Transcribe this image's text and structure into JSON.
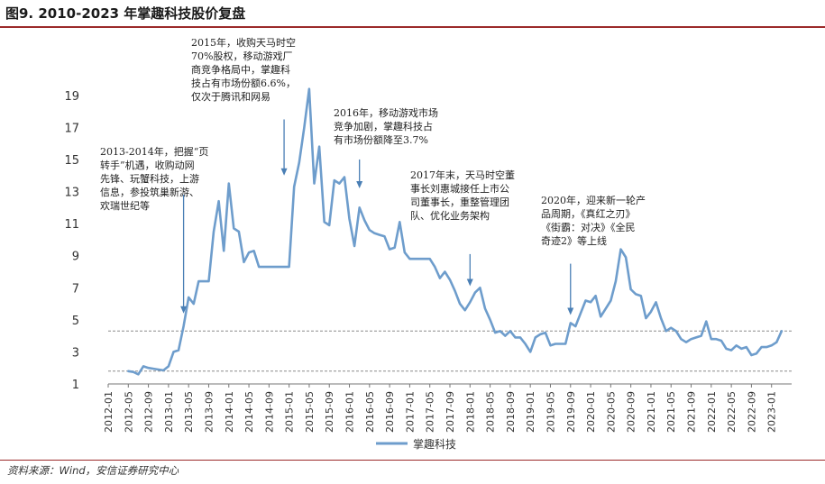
{
  "header": {
    "title": "图9. 2010-2023 年掌趣科技股价复盘"
  },
  "footer": {
    "source": "资料来源：Wind，安信证券研究中心"
  },
  "chart_data": {
    "type": "line",
    "title": "图9. 2010-2023 年掌趣科技股价复盘",
    "xlabel": "",
    "ylabel": "",
    "ylim": [
      1,
      20
    ],
    "yticks": [
      1,
      3,
      5,
      7,
      9,
      11,
      13,
      15,
      17,
      19
    ],
    "xlim": [
      "2012-01",
      "2023-05"
    ],
    "xtick_labels": [
      "2012-01",
      "2012-05",
      "2012-09",
      "2013-01",
      "2013-05",
      "2013-09",
      "2014-01",
      "2014-05",
      "2014-09",
      "2015-01",
      "2015-05",
      "2015-09",
      "2016-01",
      "2016-05",
      "2016-09",
      "2017-01",
      "2017-05",
      "2017-09",
      "2018-01",
      "2018-05",
      "2018-09",
      "2019-01",
      "2019-05",
      "2019-09",
      "2020-01",
      "2020-05",
      "2020-09",
      "2021-01",
      "2021-05",
      "2021-09",
      "2022-01",
      "2022-05",
      "2022-09",
      "2023-01"
    ],
    "grid": false,
    "legend": "bottom",
    "reference_lines": [
      4.3,
      1.8
    ],
    "series": [
      {
        "name": "掌趣科技",
        "color": "#6e9dcc",
        "points": [
          [
            "2012-05",
            1.8
          ],
          [
            "2012-06",
            1.75
          ],
          [
            "2012-07",
            1.6
          ],
          [
            "2012-08",
            2.1
          ],
          [
            "2012-09",
            2.0
          ],
          [
            "2012-10",
            1.95
          ],
          [
            "2012-11",
            1.9
          ],
          [
            "2012-12",
            1.85
          ],
          [
            "2013-01",
            2.1
          ],
          [
            "2013-02",
            3.0
          ],
          [
            "2013-03",
            3.1
          ],
          [
            "2013-04",
            4.6
          ],
          [
            "2013-05",
            6.4
          ],
          [
            "2013-06",
            6.0
          ],
          [
            "2013-07",
            7.4
          ],
          [
            "2013-08",
            7.4
          ],
          [
            "2013-09",
            7.4
          ],
          [
            "2013-10",
            10.5
          ],
          [
            "2013-11",
            12.4
          ],
          [
            "2013-12",
            9.3
          ],
          [
            "2014-01",
            13.5
          ],
          [
            "2014-02",
            10.7
          ],
          [
            "2014-03",
            10.5
          ],
          [
            "2014-04",
            8.6
          ],
          [
            "2014-05",
            9.2
          ],
          [
            "2014-06",
            9.3
          ],
          [
            "2014-07",
            8.3
          ],
          [
            "2014-08",
            8.3
          ],
          [
            "2014-09",
            8.3
          ],
          [
            "2014-10",
            8.3
          ],
          [
            "2014-11",
            8.3
          ],
          [
            "2014-12",
            8.3
          ],
          [
            "2015-01",
            8.3
          ],
          [
            "2015-02",
            13.3
          ],
          [
            "2015-03",
            14.8
          ],
          [
            "2015-04",
            17.0
          ],
          [
            "2015-05",
            19.4
          ],
          [
            "2015-06",
            13.5
          ],
          [
            "2015-07",
            15.8
          ],
          [
            "2015-08",
            11.1
          ],
          [
            "2015-09",
            10.9
          ],
          [
            "2015-10",
            13.7
          ],
          [
            "2015-11",
            13.5
          ],
          [
            "2015-12",
            13.9
          ],
          [
            "2016-01",
            11.3
          ],
          [
            "2016-02",
            9.6
          ],
          [
            "2016-03",
            12.0
          ],
          [
            "2016-04",
            11.2
          ],
          [
            "2016-05",
            10.6
          ],
          [
            "2016-06",
            10.4
          ],
          [
            "2016-07",
            10.3
          ],
          [
            "2016-08",
            10.2
          ],
          [
            "2016-09",
            9.4
          ],
          [
            "2016-10",
            9.5
          ],
          [
            "2016-11",
            11.1
          ],
          [
            "2016-12",
            9.2
          ],
          [
            "2017-01",
            8.8
          ],
          [
            "2017-02",
            8.8
          ],
          [
            "2017-03",
            8.8
          ],
          [
            "2017-04",
            8.8
          ],
          [
            "2017-05",
            8.8
          ],
          [
            "2017-06",
            8.3
          ],
          [
            "2017-07",
            7.6
          ],
          [
            "2017-08",
            8.0
          ],
          [
            "2017-09",
            7.5
          ],
          [
            "2017-10",
            6.8
          ],
          [
            "2017-11",
            6.0
          ],
          [
            "2017-12",
            5.6
          ],
          [
            "2018-01",
            6.1
          ],
          [
            "2018-02",
            6.7
          ],
          [
            "2018-03",
            7.0
          ],
          [
            "2018-04",
            5.7
          ],
          [
            "2018-05",
            5.0
          ],
          [
            "2018-06",
            4.2
          ],
          [
            "2018-07",
            4.3
          ],
          [
            "2018-08",
            4.0
          ],
          [
            "2018-09",
            4.3
          ],
          [
            "2018-10",
            3.9
          ],
          [
            "2018-11",
            3.9
          ],
          [
            "2018-12",
            3.5
          ],
          [
            "2019-01",
            3.0
          ],
          [
            "2019-02",
            3.9
          ],
          [
            "2019-03",
            4.1
          ],
          [
            "2019-04",
            4.2
          ],
          [
            "2019-05",
            3.4
          ],
          [
            "2019-06",
            3.5
          ],
          [
            "2019-07",
            3.5
          ],
          [
            "2019-08",
            3.5
          ],
          [
            "2019-09",
            4.8
          ],
          [
            "2019-10",
            4.6
          ],
          [
            "2019-11",
            5.4
          ],
          [
            "2019-12",
            6.2
          ],
          [
            "2020-01",
            6.1
          ],
          [
            "2020-02",
            6.5
          ],
          [
            "2020-03",
            5.2
          ],
          [
            "2020-04",
            5.7
          ],
          [
            "2020-05",
            6.2
          ],
          [
            "2020-06",
            7.4
          ],
          [
            "2020-07",
            9.4
          ],
          [
            "2020-08",
            8.9
          ],
          [
            "2020-09",
            6.9
          ],
          [
            "2020-10",
            6.6
          ],
          [
            "2020-11",
            6.5
          ],
          [
            "2020-12",
            5.1
          ],
          [
            "2021-01",
            5.5
          ],
          [
            "2021-02",
            6.1
          ],
          [
            "2021-03",
            5.1
          ],
          [
            "2021-04",
            4.3
          ],
          [
            "2021-05",
            4.5
          ],
          [
            "2021-06",
            4.3
          ],
          [
            "2021-07",
            3.8
          ],
          [
            "2021-08",
            3.6
          ],
          [
            "2021-09",
            3.8
          ],
          [
            "2021-10",
            3.9
          ],
          [
            "2021-11",
            4.0
          ],
          [
            "2021-12",
            4.9
          ],
          [
            "2022-01",
            3.8
          ],
          [
            "2022-02",
            3.8
          ],
          [
            "2022-03",
            3.7
          ],
          [
            "2022-04",
            3.2
          ],
          [
            "2022-05",
            3.1
          ],
          [
            "2022-06",
            3.4
          ],
          [
            "2022-07",
            3.2
          ],
          [
            "2022-08",
            3.3
          ],
          [
            "2022-09",
            2.8
          ],
          [
            "2022-10",
            2.9
          ],
          [
            "2022-11",
            3.3
          ],
          [
            "2022-12",
            3.3
          ],
          [
            "2023-01",
            3.4
          ],
          [
            "2023-02",
            3.6
          ],
          [
            "2023-03",
            4.3
          ]
        ]
      }
    ],
    "annotations": [
      {
        "lines": [
          "2013-2014年，把握“页",
          "转手”机遇，收购动网",
          "先锋、玩蟹科技，上游",
          "信息，参投筑巢新游、",
          "欢瑞世纪等"
        ],
        "arrow_x": "2013-04",
        "arrow_y_from": 12.8,
        "arrow_y_to": 5.4
      },
      {
        "lines": [
          "2015年，收购天马时空",
          "70%股权，移动游戏厂",
          "商竞争格局中，掌趣科",
          "技占有市场份额6.6%，",
          "仅次于腾讯和网易"
        ],
        "arrow_x": "2014-12",
        "arrow_y_from": 17.5,
        "arrow_y_to": 14.0
      },
      {
        "lines": [
          "2016年，移动游戏市场",
          "竞争加剧，掌趣科技占",
          "有市场份额降至3.7%"
        ],
        "arrow_x": "2016-03",
        "arrow_y_from": 15.0,
        "arrow_y_to": 13.2
      },
      {
        "lines": [
          "2017年末，天马时空董",
          "事长刘惠城接任上市公",
          "司董事长，重整管理团",
          "队、优化业务架构"
        ],
        "arrow_x": "2018-01",
        "arrow_y_from": 9.1,
        "arrow_y_to": 7.1
      },
      {
        "lines": [
          "2020年，迎来新一轮产",
          "品周期，《真红之刃》",
          "《街霸：对决》《全民",
          "奇迹2》等上线"
        ],
        "arrow_x": "2019-09",
        "arrow_y_from": 8.5,
        "arrow_y_to": 5.3
      }
    ]
  }
}
